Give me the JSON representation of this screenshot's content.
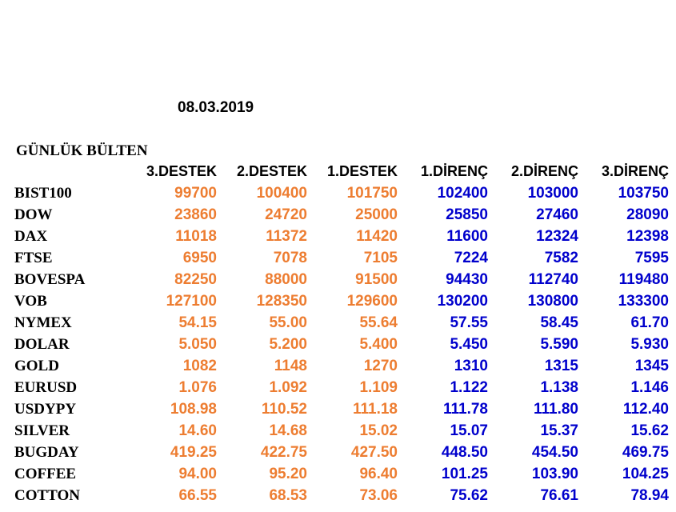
{
  "date": "08.03.2019",
  "title": "GÜNLÜK BÜLTEN",
  "colors": {
    "support": "#ed7d31",
    "resistance": "#0000cc",
    "text": "#000000"
  },
  "headers": [
    "3.DESTEK",
    "2.DESTEK",
    "1.DESTEK",
    "1.DİRENÇ",
    "2.DİRENÇ",
    "3.DİRENÇ"
  ],
  "rows": [
    {
      "symbol": "BIST100",
      "values": [
        "99700",
        "100400",
        "101750",
        "102400",
        "103000",
        "103750"
      ]
    },
    {
      "symbol": "DOW",
      "values": [
        "23860",
        "24720",
        "25000",
        "25850",
        "27460",
        "28090"
      ]
    },
    {
      "symbol": "DAX",
      "values": [
        "11018",
        "11372",
        "11420",
        "11600",
        "12324",
        "12398"
      ]
    },
    {
      "symbol": "FTSE",
      "values": [
        "6950",
        "7078",
        "7105",
        "7224",
        "7582",
        "7595"
      ]
    },
    {
      "symbol": "BOVESPA",
      "values": [
        "82250",
        "88000",
        "91500",
        "94430",
        "112740",
        "119480"
      ]
    },
    {
      "symbol": "VOB",
      "values": [
        "127100",
        "128350",
        "129600",
        "130200",
        "130800",
        "133300"
      ]
    },
    {
      "symbol": "NYMEX",
      "values": [
        "54.15",
        "55.00",
        "55.64",
        "57.55",
        "58.45",
        "61.70"
      ]
    },
    {
      "symbol": "DOLAR",
      "values": [
        "5.050",
        "5.200",
        "5.400",
        "5.450",
        "5.590",
        "5.930"
      ]
    },
    {
      "symbol": "GOLD",
      "values": [
        "1082",
        "1148",
        "1270",
        "1310",
        "1315",
        "1345"
      ]
    },
    {
      "symbol": "EURUSD",
      "values": [
        "1.076",
        "1.092",
        "1.109",
        "1.122",
        "1.138",
        "1.146"
      ]
    },
    {
      "symbol": "USDYPY",
      "values": [
        "108.98",
        "110.52",
        "111.18",
        "111.78",
        "111.80",
        "112.40"
      ]
    },
    {
      "symbol": "SILVER",
      "values": [
        "14.60",
        "14.68",
        "15.02",
        "15.07",
        "15.37",
        "15.62"
      ]
    },
    {
      "symbol": "BUGDAY",
      "values": [
        "419.25",
        "422.75",
        "427.50",
        "448.50",
        "454.50",
        "469.75"
      ]
    },
    {
      "symbol": "COFFEE",
      "values": [
        "94.00",
        "95.20",
        "96.40",
        "101.25",
        "103.90",
        "104.25"
      ]
    },
    {
      "symbol": "COTTON",
      "values": [
        "66.55",
        "68.53",
        "73.06",
        "75.62",
        "76.61",
        "78.94"
      ]
    }
  ]
}
